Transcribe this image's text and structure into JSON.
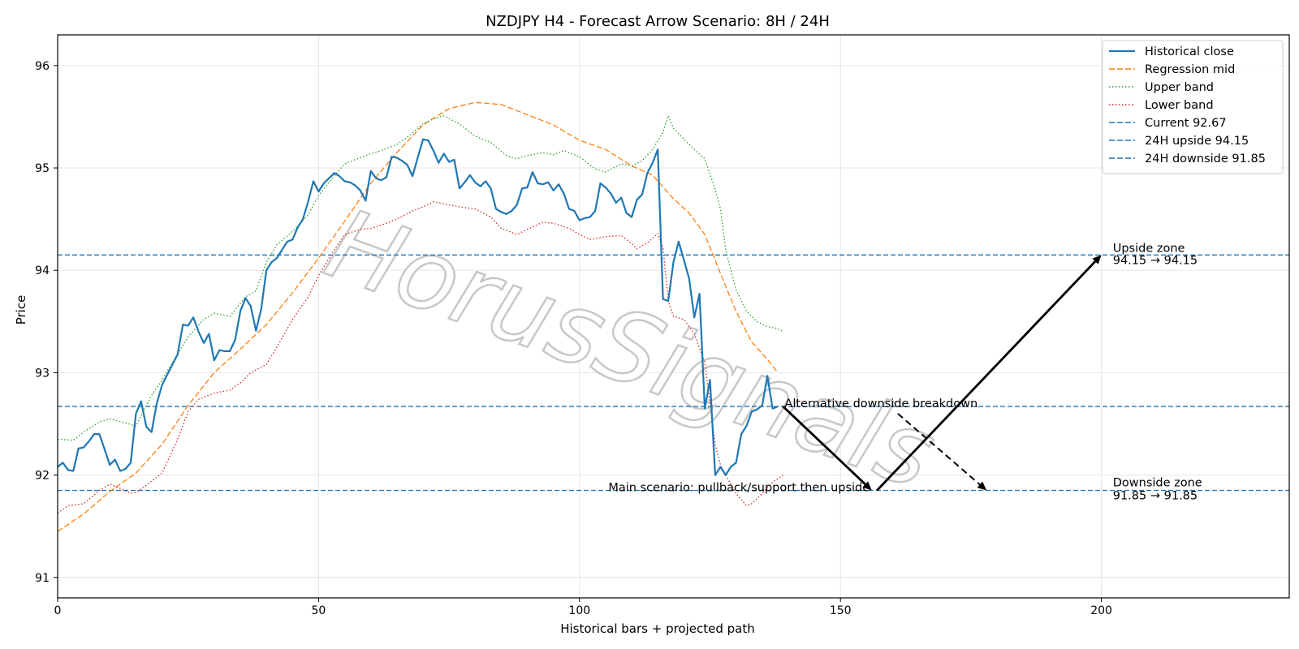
{
  "chart_data": {
    "type": "line",
    "title": "NZDJPY H4 - Forecast Arrow Scenario: 8H / 24H",
    "xlabel": "Historical bars + projected path",
    "ylabel": "Price",
    "xlim": [
      0,
      236
    ],
    "ylim": [
      90.8,
      96.3
    ],
    "xticks": [
      0,
      50,
      100,
      150,
      200
    ],
    "yticks": [
      91,
      92,
      93,
      94,
      95,
      96
    ],
    "grid": true,
    "legend_position": "top-right",
    "watermark": "HorusSignals",
    "colors": {
      "close": "#1f77b4",
      "mid": "#ff7f0e",
      "upper": "#2ca02c",
      "lower": "#d62728",
      "hline": "#1f77b4",
      "arrow": "#000000"
    },
    "series": [
      {
        "name": "Historical close",
        "key": "close",
        "style": "solid",
        "points": [
          [
            0,
            92.08
          ],
          [
            1,
            92.12
          ],
          [
            2,
            92.05
          ],
          [
            3,
            92.04
          ],
          [
            4,
            92.26
          ],
          [
            5,
            92.27
          ],
          [
            6,
            92.33
          ],
          [
            7,
            92.4
          ],
          [
            8,
            92.4
          ],
          [
            9,
            92.25
          ],
          [
            10,
            92.1
          ],
          [
            11,
            92.15
          ],
          [
            12,
            92.04
          ],
          [
            13,
            92.06
          ],
          [
            14,
            92.12
          ],
          [
            15,
            92.6
          ],
          [
            16,
            92.72
          ],
          [
            17,
            92.47
          ],
          [
            18,
            92.42
          ],
          [
            19,
            92.7
          ],
          [
            20,
            92.88
          ],
          [
            21,
            92.98
          ],
          [
            22,
            93.08
          ],
          [
            23,
            93.18
          ],
          [
            24,
            93.47
          ],
          [
            25,
            93.46
          ],
          [
            26,
            93.54
          ],
          [
            27,
            93.4
          ],
          [
            28,
            93.29
          ],
          [
            29,
            93.38
          ],
          [
            30,
            93.12
          ],
          [
            31,
            93.22
          ],
          [
            32,
            93.21
          ],
          [
            33,
            93.21
          ],
          [
            34,
            93.32
          ],
          [
            35,
            93.6
          ],
          [
            36,
            93.73
          ],
          [
            37,
            93.65
          ],
          [
            38,
            93.41
          ],
          [
            39,
            93.62
          ],
          [
            40,
            94.0
          ],
          [
            41,
            94.08
          ],
          [
            42,
            94.12
          ],
          [
            43,
            94.2
          ],
          [
            44,
            94.28
          ],
          [
            45,
            94.3
          ],
          [
            46,
            94.42
          ],
          [
            47,
            94.5
          ],
          [
            48,
            94.67
          ],
          [
            49,
            94.87
          ],
          [
            50,
            94.77
          ],
          [
            51,
            94.85
          ],
          [
            52,
            94.9
          ],
          [
            53,
            94.95
          ],
          [
            54,
            94.92
          ],
          [
            55,
            94.87
          ],
          [
            56,
            94.86
          ],
          [
            57,
            94.83
          ],
          [
            58,
            94.78
          ],
          [
            59,
            94.68
          ],
          [
            60,
            94.97
          ],
          [
            61,
            94.9
          ],
          [
            62,
            94.88
          ],
          [
            63,
            94.91
          ],
          [
            64,
            95.11
          ],
          [
            65,
            95.1
          ],
          [
            66,
            95.07
          ],
          [
            67,
            95.03
          ],
          [
            68,
            94.92
          ],
          [
            69,
            95.1
          ],
          [
            70,
            95.28
          ],
          [
            71,
            95.27
          ],
          [
            72,
            95.17
          ],
          [
            73,
            95.05
          ],
          [
            74,
            95.14
          ],
          [
            75,
            95.06
          ],
          [
            76,
            95.08
          ],
          [
            77,
            94.8
          ],
          [
            78,
            94.86
          ],
          [
            79,
            94.93
          ],
          [
            80,
            94.86
          ],
          [
            81,
            94.82
          ],
          [
            82,
            94.87
          ],
          [
            83,
            94.8
          ],
          [
            84,
            94.6
          ],
          [
            85,
            94.57
          ],
          [
            86,
            94.55
          ],
          [
            87,
            94.58
          ],
          [
            88,
            94.64
          ],
          [
            89,
            94.8
          ],
          [
            90,
            94.81
          ],
          [
            91,
            94.96
          ],
          [
            92,
            94.85
          ],
          [
            93,
            94.84
          ],
          [
            94,
            94.86
          ],
          [
            95,
            94.78
          ],
          [
            96,
            94.84
          ],
          [
            97,
            94.75
          ],
          [
            98,
            94.6
          ],
          [
            99,
            94.58
          ],
          [
            100,
            94.49
          ],
          [
            101,
            94.51
          ],
          [
            102,
            94.52
          ],
          [
            103,
            94.58
          ],
          [
            104,
            94.85
          ],
          [
            105,
            94.81
          ],
          [
            106,
            94.75
          ],
          [
            107,
            94.66
          ],
          [
            108,
            94.71
          ],
          [
            109,
            94.56
          ],
          [
            110,
            94.52
          ],
          [
            111,
            94.69
          ],
          [
            112,
            94.74
          ],
          [
            113,
            94.95
          ],
          [
            114,
            95.05
          ],
          [
            115,
            95.18
          ],
          [
            116,
            93.72
          ],
          [
            117,
            93.7
          ],
          [
            118,
            94.08
          ],
          [
            119,
            94.28
          ],
          [
            120,
            94.1
          ],
          [
            121,
            93.92
          ],
          [
            122,
            93.54
          ],
          [
            123,
            93.77
          ],
          [
            124,
            92.65
          ],
          [
            125,
            92.93
          ],
          [
            126,
            92.0
          ],
          [
            127,
            92.08
          ],
          [
            128,
            92.0
          ],
          [
            129,
            92.08
          ],
          [
            130,
            92.12
          ],
          [
            131,
            92.4
          ],
          [
            132,
            92.48
          ],
          [
            133,
            92.62
          ],
          [
            134,
            92.64
          ],
          [
            135,
            92.68
          ],
          [
            136,
            92.97
          ],
          [
            137,
            92.65
          ],
          [
            138,
            92.67
          ]
        ]
      },
      {
        "name": "Regression mid",
        "key": "mid",
        "style": "dashed",
        "points": [
          [
            0,
            91.45
          ],
          [
            5,
            91.62
          ],
          [
            10,
            91.84
          ],
          [
            15,
            92.02
          ],
          [
            20,
            92.3
          ],
          [
            25,
            92.68
          ],
          [
            30,
            93.0
          ],
          [
            35,
            93.23
          ],
          [
            40,
            93.47
          ],
          [
            45,
            93.78
          ],
          [
            50,
            94.12
          ],
          [
            55,
            94.48
          ],
          [
            60,
            94.85
          ],
          [
            65,
            95.15
          ],
          [
            70,
            95.42
          ],
          [
            75,
            95.58
          ],
          [
            80,
            95.64
          ],
          [
            85,
            95.62
          ],
          [
            90,
            95.52
          ],
          [
            95,
            95.42
          ],
          [
            100,
            95.27
          ],
          [
            105,
            95.18
          ],
          [
            110,
            95.02
          ],
          [
            114,
            94.93
          ],
          [
            118,
            94.7
          ],
          [
            121,
            94.56
          ],
          [
            124,
            94.35
          ],
          [
            127,
            93.97
          ],
          [
            130,
            93.6
          ],
          [
            133,
            93.3
          ],
          [
            136,
            93.13
          ],
          [
            138,
            93.0
          ]
        ]
      },
      {
        "name": "Upper band",
        "key": "upper",
        "style": "dotted",
        "points": [
          [
            0,
            92.35
          ],
          [
            3,
            92.34
          ],
          [
            5,
            92.42
          ],
          [
            8,
            92.52
          ],
          [
            10,
            92.55
          ],
          [
            15,
            92.48
          ],
          [
            18,
            92.78
          ],
          [
            20,
            92.93
          ],
          [
            25,
            93.35
          ],
          [
            28,
            93.52
          ],
          [
            30,
            93.58
          ],
          [
            33,
            93.55
          ],
          [
            36,
            93.74
          ],
          [
            38,
            93.8
          ],
          [
            40,
            94.08
          ],
          [
            42,
            94.25
          ],
          [
            45,
            94.38
          ],
          [
            48,
            94.54
          ],
          [
            50,
            94.73
          ],
          [
            53,
            94.92
          ],
          [
            55,
            95.04
          ],
          [
            58,
            95.1
          ],
          [
            60,
            95.14
          ],
          [
            62,
            95.17
          ],
          [
            65,
            95.23
          ],
          [
            67,
            95.3
          ],
          [
            70,
            95.43
          ],
          [
            72,
            95.48
          ],
          [
            74,
            95.51
          ],
          [
            77,
            95.43
          ],
          [
            80,
            95.31
          ],
          [
            83,
            95.25
          ],
          [
            86,
            95.12
          ],
          [
            88,
            95.09
          ],
          [
            90,
            95.12
          ],
          [
            93,
            95.15
          ],
          [
            95,
            95.13
          ],
          [
            97,
            95.17
          ],
          [
            100,
            95.11
          ],
          [
            103,
            94.99
          ],
          [
            105,
            94.96
          ],
          [
            108,
            95.04
          ],
          [
            110,
            95.02
          ],
          [
            112,
            95.07
          ],
          [
            114,
            95.18
          ],
          [
            116,
            95.35
          ],
          [
            117,
            95.51
          ],
          [
            118,
            95.39
          ],
          [
            120,
            95.28
          ],
          [
            122,
            95.18
          ],
          [
            124,
            95.09
          ],
          [
            126,
            94.79
          ],
          [
            127,
            94.6
          ],
          [
            128,
            94.2
          ],
          [
            130,
            93.81
          ],
          [
            132,
            93.6
          ],
          [
            134,
            93.5
          ],
          [
            136,
            93.45
          ],
          [
            138,
            93.43
          ],
          [
            139,
            93.4
          ]
        ]
      },
      {
        "name": "Lower band",
        "key": "lower",
        "style": "dotted",
        "points": [
          [
            0,
            91.63
          ],
          [
            2,
            91.7
          ],
          [
            5,
            91.72
          ],
          [
            8,
            91.85
          ],
          [
            10,
            91.91
          ],
          [
            12,
            91.87
          ],
          [
            14,
            91.82
          ],
          [
            15,
            91.83
          ],
          [
            17,
            91.9
          ],
          [
            20,
            92.02
          ],
          [
            23,
            92.35
          ],
          [
            25,
            92.62
          ],
          [
            27,
            92.74
          ],
          [
            30,
            92.8
          ],
          [
            33,
            92.83
          ],
          [
            35,
            92.9
          ],
          [
            37,
            93.0
          ],
          [
            40,
            93.08
          ],
          [
            42,
            93.25
          ],
          [
            45,
            93.52
          ],
          [
            48,
            93.74
          ],
          [
            50,
            93.95
          ],
          [
            53,
            94.2
          ],
          [
            55,
            94.35
          ],
          [
            58,
            94.4
          ],
          [
            60,
            94.41
          ],
          [
            63,
            94.46
          ],
          [
            65,
            94.5
          ],
          [
            68,
            94.58
          ],
          [
            70,
            94.62
          ],
          [
            72,
            94.67
          ],
          [
            75,
            94.64
          ],
          [
            77,
            94.62
          ],
          [
            80,
            94.6
          ],
          [
            83,
            94.52
          ],
          [
            85,
            94.41
          ],
          [
            88,
            94.35
          ],
          [
            90,
            94.4
          ],
          [
            93,
            94.47
          ],
          [
            95,
            94.46
          ],
          [
            98,
            94.41
          ],
          [
            100,
            94.35
          ],
          [
            102,
            94.3
          ],
          [
            105,
            94.33
          ],
          [
            108,
            94.34
          ],
          [
            110,
            94.26
          ],
          [
            111,
            94.21
          ],
          [
            113,
            94.27
          ],
          [
            115,
            94.36
          ],
          [
            116,
            94.22
          ],
          [
            117,
            93.7
          ],
          [
            118,
            93.55
          ],
          [
            120,
            93.52
          ],
          [
            122,
            93.38
          ],
          [
            124,
            93.1
          ],
          [
            126,
            92.3
          ],
          [
            127,
            92.1
          ],
          [
            128,
            92.0
          ],
          [
            130,
            91.82
          ],
          [
            132,
            91.7
          ],
          [
            133,
            91.72
          ],
          [
            135,
            91.82
          ],
          [
            137,
            91.93
          ],
          [
            139,
            92.0
          ]
        ]
      }
    ],
    "hlines": [
      {
        "name": "Current 92.67",
        "value": 92.67
      },
      {
        "name": "24H upside 94.15",
        "value": 94.15
      },
      {
        "name": "24H downside 91.85",
        "value": 91.85
      }
    ],
    "arrows": [
      {
        "from": [
          139,
          92.67
        ],
        "to": [
          156,
          91.85
        ],
        "style": "solid"
      },
      {
        "from": [
          157,
          91.85
        ],
        "to": [
          200,
          94.15
        ],
        "style": "solid"
      },
      {
        "from": [
          161,
          92.6
        ],
        "to": [
          178,
          91.85
        ],
        "style": "dashed"
      }
    ],
    "annotations": {
      "upside_zone_title": "Upside zone",
      "upside_zone_range": "94.15 → 94.15",
      "downside_zone_title": "Downside zone",
      "downside_zone_range": "91.85 → 91.85",
      "alt_scenario": "Alternative downside breakdown",
      "main_scenario": "Main scenario: pullback/support then upside"
    }
  }
}
